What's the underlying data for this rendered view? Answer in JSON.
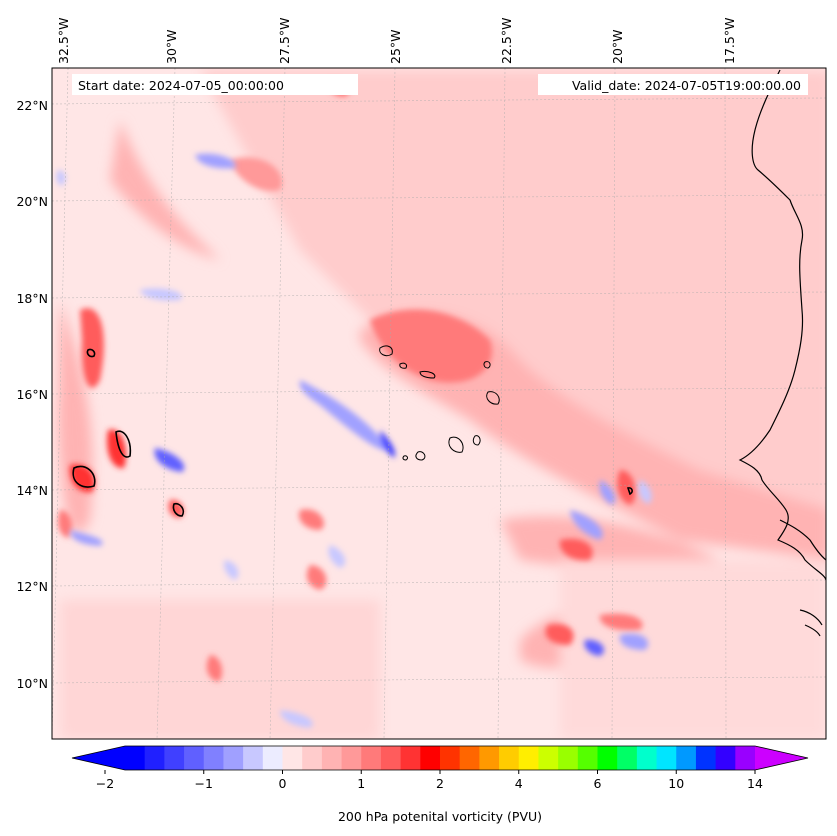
{
  "header": {
    "start_date": "Start date: 2024-07-05_00:00:00",
    "valid_date": "Valid_date: 2024-07-05T19:00:00.00"
  },
  "axes": {
    "longitude_labels": [
      "32.5°W",
      "30°W",
      "27.5°W",
      "25°W",
      "22.5°W",
      "20°W",
      "17.5°W"
    ],
    "longitude_values": [
      -32.5,
      -30,
      -27.5,
      -25,
      -22.5,
      -20,
      -17.5
    ],
    "latitude_labels": [
      "22°N",
      "20°N",
      "18°N",
      "16°N",
      "14°N",
      "12°N",
      "10°N"
    ],
    "latitude_values": [
      22,
      20,
      18,
      16,
      14,
      12,
      10
    ],
    "lon_range": [
      -32.6,
      -15.3
    ],
    "lat_range": [
      8.9,
      22.8
    ]
  },
  "colorbar": {
    "label": "200 hPa potenital vorticity (PVU)",
    "tick_labels": [
      "−2",
      "−1",
      "0",
      "1",
      "2",
      "4",
      "6",
      "10",
      "14"
    ],
    "extend": "both",
    "colors": [
      "#0000ff",
      "#2020ff",
      "#4040ff",
      "#6060ff",
      "#8080ff",
      "#a0a0ff",
      "#c8c8ff",
      "#ececff",
      "#ffe6e6",
      "#ffcccc",
      "#ffb3b3",
      "#ff9999",
      "#ff7a7a",
      "#ff5c5c",
      "#ff3333",
      "#ff0000",
      "#ff3300",
      "#ff6600",
      "#ff9900",
      "#ffcc00",
      "#ffee00",
      "#ccff00",
      "#99ff00",
      "#55ff00",
      "#00ff00",
      "#00ff66",
      "#00ffcc",
      "#00e5ff",
      "#0099ff",
      "#0033ff",
      "#3300ff",
      "#9900ff"
    ],
    "under_color": "#0000ff",
    "over_color": "#cc00ff"
  },
  "map_features": {
    "coastline": "west-africa",
    "islands": "cabo-verde",
    "gridlines": true
  }
}
